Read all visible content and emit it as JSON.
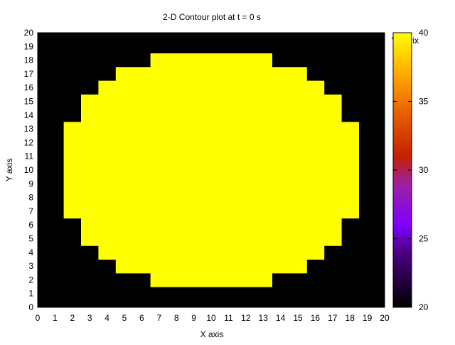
{
  "chart_data": {
    "type": "heatmap",
    "title": "2-D Contour plot at t = 0 s",
    "xlabel": "X axis",
    "ylabel": "Y axis",
    "xlim": [
      0,
      20
    ],
    "ylim": [
      0,
      20
    ],
    "x_ticks": [
      "0",
      "1",
      "2",
      "3",
      "4",
      "5",
      "6",
      "7",
      "8",
      "9",
      "10",
      "11",
      "12",
      "13",
      "14",
      "15",
      "16",
      "17",
      "18",
      "19",
      "20"
    ],
    "y_ticks": [
      "0",
      "1",
      "2",
      "3",
      "4",
      "5",
      "6",
      "7",
      "8",
      "9",
      "10",
      "11",
      "12",
      "13",
      "14",
      "15",
      "16",
      "17",
      "18",
      "19",
      "20"
    ],
    "colorbar": {
      "min": 20,
      "max": 40,
      "ticks": [
        "20",
        "25",
        "30",
        "35",
        "40"
      ]
    },
    "legend_text": "' matrix",
    "background_value": 20,
    "grid_spans": {
      "description": "for each integer y row (0..20): [x_start, x_end] cell range with value 40, or null",
      "value": 40,
      "rows": [
        null,
        null,
        [
          7,
          13
        ],
        [
          5,
          15
        ],
        [
          4,
          16
        ],
        [
          3,
          17
        ],
        [
          3,
          17
        ],
        [
          2,
          18
        ],
        [
          2,
          18
        ],
        [
          2,
          18
        ],
        [
          2,
          18
        ],
        [
          2,
          18
        ],
        [
          2,
          18
        ],
        [
          2,
          18
        ],
        [
          3,
          17
        ],
        [
          3,
          17
        ],
        [
          4,
          16
        ],
        [
          5,
          15
        ],
        [
          7,
          13
        ],
        null,
        null
      ]
    }
  }
}
